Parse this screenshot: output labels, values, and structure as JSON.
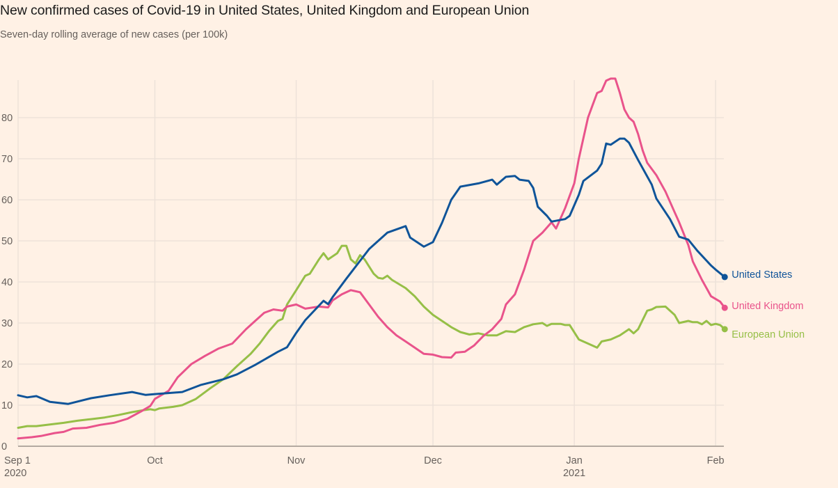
{
  "chart_data": {
    "type": "line",
    "title": "New confirmed cases of Covid-19 in United States, United Kingdom and European Union",
    "subtitle": "Seven-day rolling average of new cases (per 100k)",
    "xlabel": "",
    "ylabel": "",
    "ylim": [
      0,
      90
    ],
    "y_ticks": [
      0,
      10,
      20,
      30,
      40,
      50,
      60,
      70,
      80
    ],
    "x_range_days": [
      0,
      155
    ],
    "x_ticks": [
      {
        "day": 0,
        "label": "Sep 1",
        "sublabel": "2020"
      },
      {
        "day": 30,
        "label": "Oct",
        "sublabel": ""
      },
      {
        "day": 61,
        "label": "Nov",
        "sublabel": ""
      },
      {
        "day": 91,
        "label": "Dec",
        "sublabel": ""
      },
      {
        "day": 122,
        "label": "Jan",
        "sublabel": "2021"
      },
      {
        "day": 153,
        "label": "Feb",
        "sublabel": ""
      }
    ],
    "grid": true,
    "legend": "inline-right",
    "series": [
      {
        "name": "United States",
        "color": "#0f5499",
        "points": [
          [
            0,
            12.4
          ],
          [
            2,
            11.9
          ],
          [
            4,
            12.2
          ],
          [
            7,
            10.8
          ],
          [
            11,
            10.3
          ],
          [
            16,
            11.7
          ],
          [
            20,
            12.4
          ],
          [
            25,
            13.2
          ],
          [
            28,
            12.5
          ],
          [
            30,
            12.7
          ],
          [
            36,
            13.2
          ],
          [
            40,
            14.9
          ],
          [
            45,
            16.3
          ],
          [
            48,
            17.5
          ],
          [
            52,
            19.8
          ],
          [
            57,
            23.0
          ],
          [
            59,
            24.1
          ],
          [
            61,
            27.6
          ],
          [
            63,
            30.7
          ],
          [
            67,
            35.4
          ],
          [
            68,
            34.6
          ],
          [
            69,
            36.3
          ],
          [
            72,
            40.8
          ],
          [
            77,
            48.0
          ],
          [
            81,
            52.0
          ],
          [
            85,
            53.6
          ],
          [
            86,
            50.8
          ],
          [
            89,
            48.6
          ],
          [
            91,
            49.7
          ],
          [
            93,
            54.4
          ],
          [
            95,
            60.0
          ],
          [
            97,
            63.2
          ],
          [
            101,
            64.0
          ],
          [
            104,
            64.9
          ],
          [
            105,
            63.7
          ],
          [
            107,
            65.6
          ],
          [
            109,
            65.8
          ],
          [
            110,
            64.9
          ],
          [
            112,
            64.6
          ],
          [
            113,
            62.9
          ],
          [
            114,
            58.3
          ],
          [
            116,
            56.1
          ],
          [
            117,
            54.7
          ],
          [
            120,
            55.3
          ],
          [
            121,
            56.1
          ],
          [
            123,
            61.2
          ],
          [
            124,
            64.6
          ],
          [
            127,
            67.1
          ],
          [
            128,
            68.8
          ],
          [
            129,
            73.7
          ],
          [
            130,
            73.4
          ],
          [
            132,
            74.9
          ],
          [
            133,
            74.9
          ],
          [
            134,
            73.9
          ],
          [
            136,
            69.7
          ],
          [
            139,
            63.7
          ],
          [
            140,
            60.3
          ],
          [
            143,
            55.3
          ],
          [
            145,
            51.0
          ],
          [
            147,
            50.3
          ],
          [
            149,
            47.6
          ],
          [
            152,
            44.0
          ],
          [
            153,
            43.0
          ],
          [
            155,
            41.2
          ]
        ]
      },
      {
        "name": "United Kingdom",
        "color": "#e9538b",
        "points": [
          [
            0,
            1.9
          ],
          [
            3,
            2.2
          ],
          [
            5,
            2.5
          ],
          [
            8,
            3.2
          ],
          [
            10,
            3.5
          ],
          [
            12,
            4.3
          ],
          [
            15,
            4.5
          ],
          [
            18,
            5.2
          ],
          [
            21,
            5.7
          ],
          [
            24,
            6.7
          ],
          [
            27,
            8.5
          ],
          [
            29,
            9.8
          ],
          [
            30,
            11.5
          ],
          [
            33,
            13.5
          ],
          [
            35,
            16.8
          ],
          [
            38,
            20.0
          ],
          [
            41,
            22.0
          ],
          [
            44,
            23.8
          ],
          [
            47,
            25.0
          ],
          [
            50,
            28.5
          ],
          [
            52,
            30.5
          ],
          [
            54,
            32.5
          ],
          [
            56,
            33.3
          ],
          [
            58,
            33.0
          ],
          [
            59,
            34.0
          ],
          [
            61,
            34.5
          ],
          [
            63,
            33.5
          ],
          [
            66,
            34.0
          ],
          [
            68,
            33.8
          ],
          [
            69,
            35.5
          ],
          [
            71,
            37.0
          ],
          [
            73,
            38.0
          ],
          [
            75,
            37.5
          ],
          [
            77,
            34.5
          ],
          [
            79,
            31.5
          ],
          [
            81,
            29.0
          ],
          [
            83,
            27.0
          ],
          [
            85,
            25.5
          ],
          [
            87,
            24.0
          ],
          [
            89,
            22.5
          ],
          [
            91,
            22.3
          ],
          [
            93,
            21.7
          ],
          [
            95,
            21.6
          ],
          [
            96,
            22.8
          ],
          [
            98,
            23.0
          ],
          [
            100,
            24.5
          ],
          [
            102,
            26.8
          ],
          [
            104,
            28.5
          ],
          [
            106,
            31.0
          ],
          [
            107,
            34.5
          ],
          [
            109,
            37.0
          ],
          [
            111,
            43.0
          ],
          [
            113,
            50.0
          ],
          [
            115,
            52.0
          ],
          [
            117,
            54.5
          ],
          [
            118,
            53.0
          ],
          [
            120,
            58.0
          ],
          [
            122,
            64.0
          ],
          [
            123,
            70.0
          ],
          [
            124,
            75.0
          ],
          [
            125,
            80.0
          ],
          [
            126,
            83.0
          ],
          [
            127,
            86.0
          ],
          [
            128,
            86.5
          ],
          [
            129,
            89.0
          ],
          [
            130,
            89.5
          ],
          [
            131,
            89.5
          ],
          [
            132,
            86.0
          ],
          [
            133,
            82.0
          ],
          [
            134,
            80.0
          ],
          [
            135,
            79.0
          ],
          [
            136,
            76.0
          ],
          [
            137,
            72.0
          ],
          [
            138,
            69.0
          ],
          [
            140,
            66.0
          ],
          [
            142,
            62.0
          ],
          [
            144,
            57.0
          ],
          [
            145,
            54.5
          ],
          [
            147,
            49.0
          ],
          [
            148,
            45.0
          ],
          [
            150,
            40.5
          ],
          [
            152,
            36.5
          ],
          [
            154,
            35.2
          ],
          [
            155,
            33.7
          ]
        ]
      },
      {
        "name": "European Union",
        "color": "#96bf47",
        "points": [
          [
            0,
            4.5
          ],
          [
            2,
            4.9
          ],
          [
            4,
            4.9
          ],
          [
            7,
            5.3
          ],
          [
            10,
            5.7
          ],
          [
            13,
            6.2
          ],
          [
            16,
            6.6
          ],
          [
            19,
            7.0
          ],
          [
            22,
            7.6
          ],
          [
            25,
            8.3
          ],
          [
            27,
            8.7
          ],
          [
            29,
            9.0
          ],
          [
            30,
            8.8
          ],
          [
            31,
            9.2
          ],
          [
            34,
            9.6
          ],
          [
            36,
            10.0
          ],
          [
            39,
            11.5
          ],
          [
            42,
            14.0
          ],
          [
            45,
            16.3
          ],
          [
            48,
            19.5
          ],
          [
            51,
            22.5
          ],
          [
            53,
            25.0
          ],
          [
            55,
            28.0
          ],
          [
            57,
            30.5
          ],
          [
            58,
            31.0
          ],
          [
            59,
            34.5
          ],
          [
            61,
            38.0
          ],
          [
            63,
            41.5
          ],
          [
            64,
            42.0
          ],
          [
            66,
            45.5
          ],
          [
            67,
            47.0
          ],
          [
            68,
            45.5
          ],
          [
            70,
            47.0
          ],
          [
            71,
            48.8
          ],
          [
            72,
            48.8
          ],
          [
            73,
            45.5
          ],
          [
            74,
            44.5
          ],
          [
            75,
            46.5
          ],
          [
            76,
            45.5
          ],
          [
            78,
            42.0
          ],
          [
            79,
            41.0
          ],
          [
            80,
            40.8
          ],
          [
            81,
            41.5
          ],
          [
            82,
            40.5
          ],
          [
            85,
            38.5
          ],
          [
            87,
            36.5
          ],
          [
            89,
            34.0
          ],
          [
            91,
            32.0
          ],
          [
            93,
            30.5
          ],
          [
            95,
            29.0
          ],
          [
            97,
            27.8
          ],
          [
            99,
            27.2
          ],
          [
            101,
            27.5
          ],
          [
            103,
            27.0
          ],
          [
            105,
            27.0
          ],
          [
            107,
            28.0
          ],
          [
            109,
            27.8
          ],
          [
            111,
            29.0
          ],
          [
            113,
            29.7
          ],
          [
            115,
            30.0
          ],
          [
            116,
            29.3
          ],
          [
            117,
            29.8
          ],
          [
            119,
            29.8
          ],
          [
            120,
            29.5
          ],
          [
            121,
            29.5
          ],
          [
            123,
            26.0
          ],
          [
            125,
            25.0
          ],
          [
            127,
            24.0
          ],
          [
            128,
            25.5
          ],
          [
            130,
            26.0
          ],
          [
            132,
            27.0
          ],
          [
            134,
            28.5
          ],
          [
            135,
            27.5
          ],
          [
            136,
            28.5
          ],
          [
            138,
            33.0
          ],
          [
            139,
            33.3
          ],
          [
            140,
            33.9
          ],
          [
            142,
            34.0
          ],
          [
            144,
            32.0
          ],
          [
            145,
            30.0
          ],
          [
            147,
            30.5
          ],
          [
            148,
            30.2
          ],
          [
            149,
            30.2
          ],
          [
            150,
            29.7
          ],
          [
            151,
            30.5
          ],
          [
            152,
            29.5
          ],
          [
            153,
            29.8
          ],
          [
            154,
            29.5
          ],
          [
            155,
            28.5
          ]
        ]
      }
    ]
  }
}
